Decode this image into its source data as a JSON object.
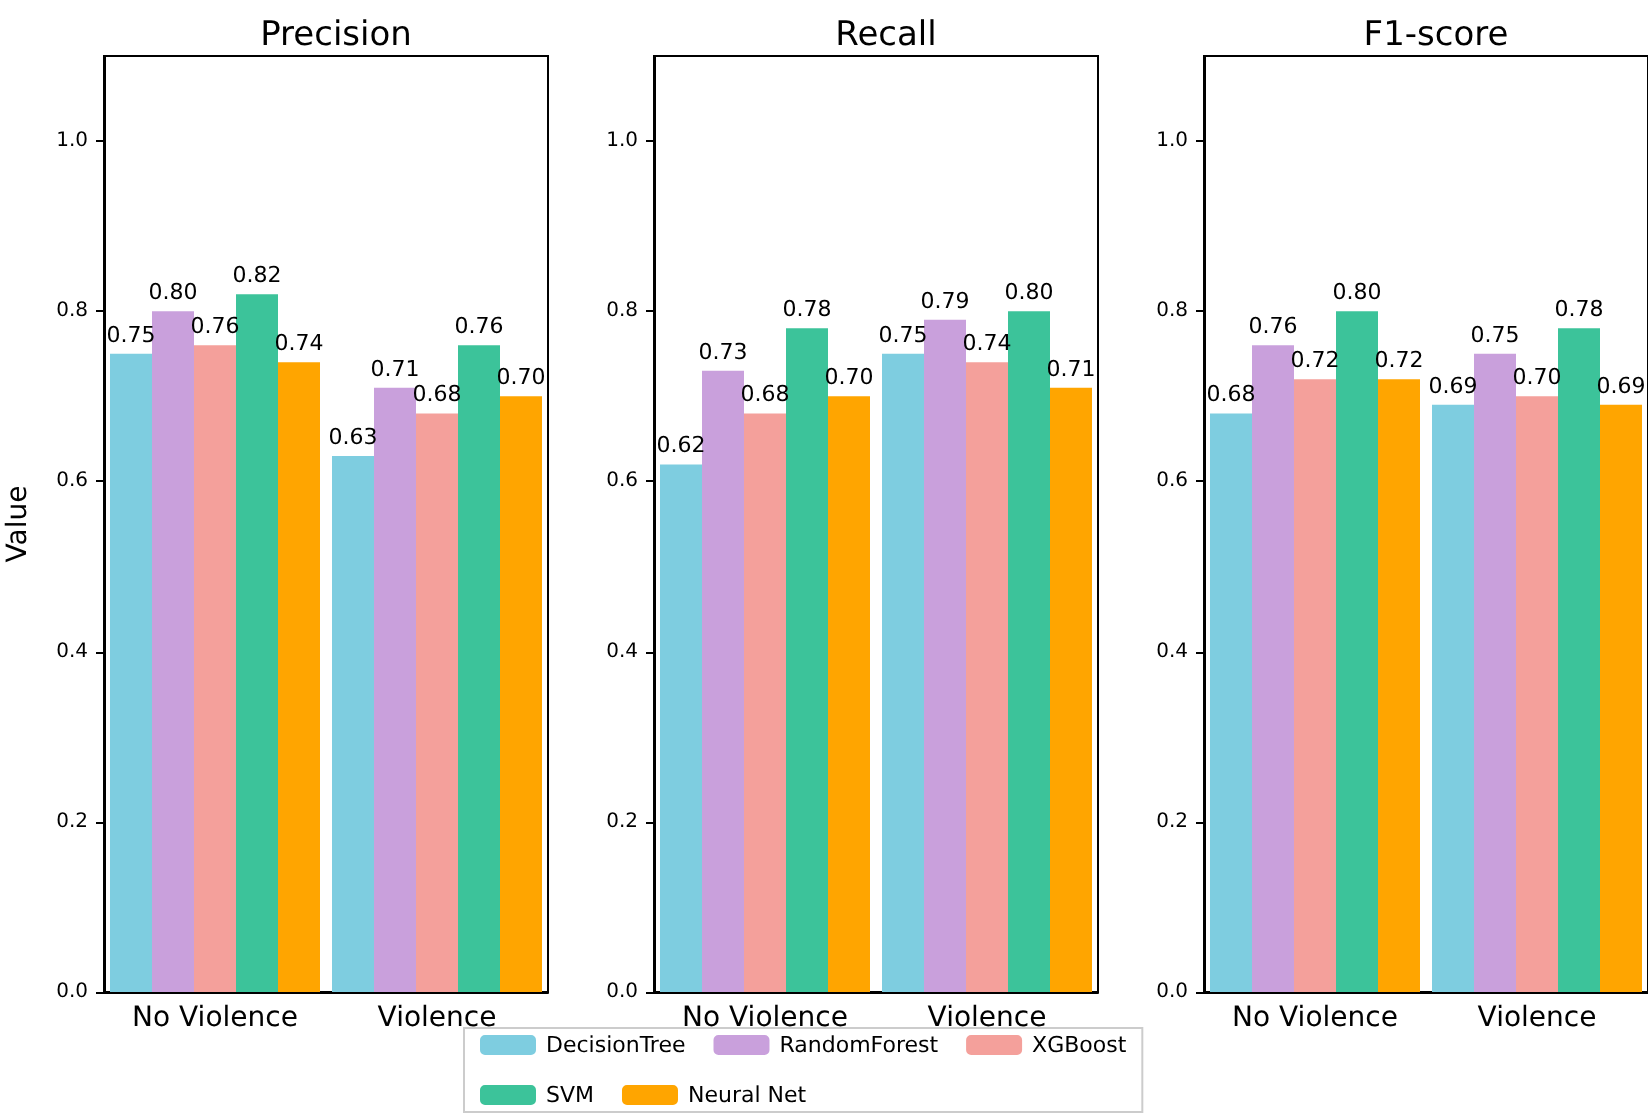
{
  "chart_data": [
    {
      "type": "bar",
      "title": "Precision",
      "ylabel": "Value",
      "categories": [
        "No Violence",
        "Violence"
      ],
      "ylim": [
        0,
        1.1
      ],
      "yticks": [
        {
          "value": 0,
          "label": "0.0"
        },
        {
          "value": 0.2,
          "label": "0.2"
        },
        {
          "value": 0.4,
          "label": "0.4"
        },
        {
          "value": 0.6,
          "label": "0.6"
        },
        {
          "value": 0.8,
          "label": "0.8"
        },
        {
          "value": 1,
          "label": "1.0"
        }
      ],
      "grid": false,
      "legend": "bottom",
      "series": [
        {
          "name": "DecisionTree",
          "color": "#7ecde0",
          "values": [
            0.75,
            0.63
          ],
          "value_labels": [
            "0.75",
            "0.63"
          ]
        },
        {
          "name": "RandomForest",
          "color": "#c9a0dc",
          "values": [
            0.8,
            0.71
          ],
          "value_labels": [
            "0.80",
            "0.71"
          ]
        },
        {
          "name": "XGBoost",
          "color": "#f4a09b",
          "values": [
            0.76,
            0.68
          ],
          "value_labels": [
            "0.76",
            "0.68"
          ]
        },
        {
          "name": "SVM",
          "color": "#3cc39a",
          "values": [
            0.82,
            0.76
          ],
          "value_labels": [
            "0.82",
            "0.76"
          ]
        },
        {
          "name": "Neural Net",
          "color": "#ffa500",
          "values": [
            0.74,
            0.7
          ],
          "value_labels": [
            "0.74",
            "0.70"
          ]
        }
      ]
    },
    {
      "type": "bar",
      "title": "Recall",
      "categories": [
        "No Violence",
        "Violence"
      ],
      "ylim": [
        0,
        1.1
      ],
      "yticks": [
        {
          "value": 0,
          "label": "0.0"
        },
        {
          "value": 0.2,
          "label": "0.2"
        },
        {
          "value": 0.4,
          "label": "0.4"
        },
        {
          "value": 0.6,
          "label": "0.6"
        },
        {
          "value": 0.8,
          "label": "0.8"
        },
        {
          "value": 1,
          "label": "1.0"
        }
      ],
      "grid": false,
      "series": [
        {
          "color": "#7ecde0",
          "values": [
            0.62,
            0.75
          ],
          "value_labels": [
            "0.62",
            "0.75"
          ]
        },
        {
          "color": "#c9a0dc",
          "values": [
            0.73,
            0.79
          ],
          "value_labels": [
            "0.73",
            "0.79"
          ]
        },
        {
          "color": "#f4a09b",
          "values": [
            0.68,
            0.74
          ],
          "value_labels": [
            "0.68",
            "0.74"
          ]
        },
        {
          "color": "#3cc39a",
          "values": [
            0.78,
            0.8
          ],
          "value_labels": [
            "0.78",
            "0.80"
          ]
        },
        {
          "color": "#ffa500",
          "values": [
            0.7,
            0.71
          ],
          "value_labels": [
            "0.70",
            "0.71"
          ]
        }
      ]
    },
    {
      "type": "bar",
      "title": "F1-score",
      "categories": [
        "No Violence",
        "Violence"
      ],
      "ylim": [
        0,
        1.1
      ],
      "yticks": [
        {
          "value": 0,
          "label": "0.0"
        },
        {
          "value": 0.2,
          "label": "0.2"
        },
        {
          "value": 0.4,
          "label": "0.4"
        },
        {
          "value": 0.6,
          "label": "0.6"
        },
        {
          "value": 0.8,
          "label": "0.8"
        },
        {
          "value": 1,
          "label": "1.0"
        }
      ],
      "grid": false,
      "series": [
        {
          "color": "#7ecde0",
          "values": [
            0.68,
            0.69
          ],
          "value_labels": [
            "0.68",
            "0.69"
          ]
        },
        {
          "color": "#c9a0dc",
          "values": [
            0.76,
            0.75
          ],
          "value_labels": [
            "0.76",
            "0.75"
          ]
        },
        {
          "color": "#f4a09b",
          "values": [
            0.72,
            0.7
          ],
          "value_labels": [
            "0.72",
            "0.70"
          ]
        },
        {
          "color": "#3cc39a",
          "values": [
            0.8,
            0.78
          ],
          "value_labels": [
            "0.80",
            "0.78"
          ]
        },
        {
          "color": "#ffa500",
          "values": [
            0.72,
            0.69
          ],
          "value_labels": [
            "0.72",
            "0.69"
          ]
        }
      ]
    }
  ]
}
